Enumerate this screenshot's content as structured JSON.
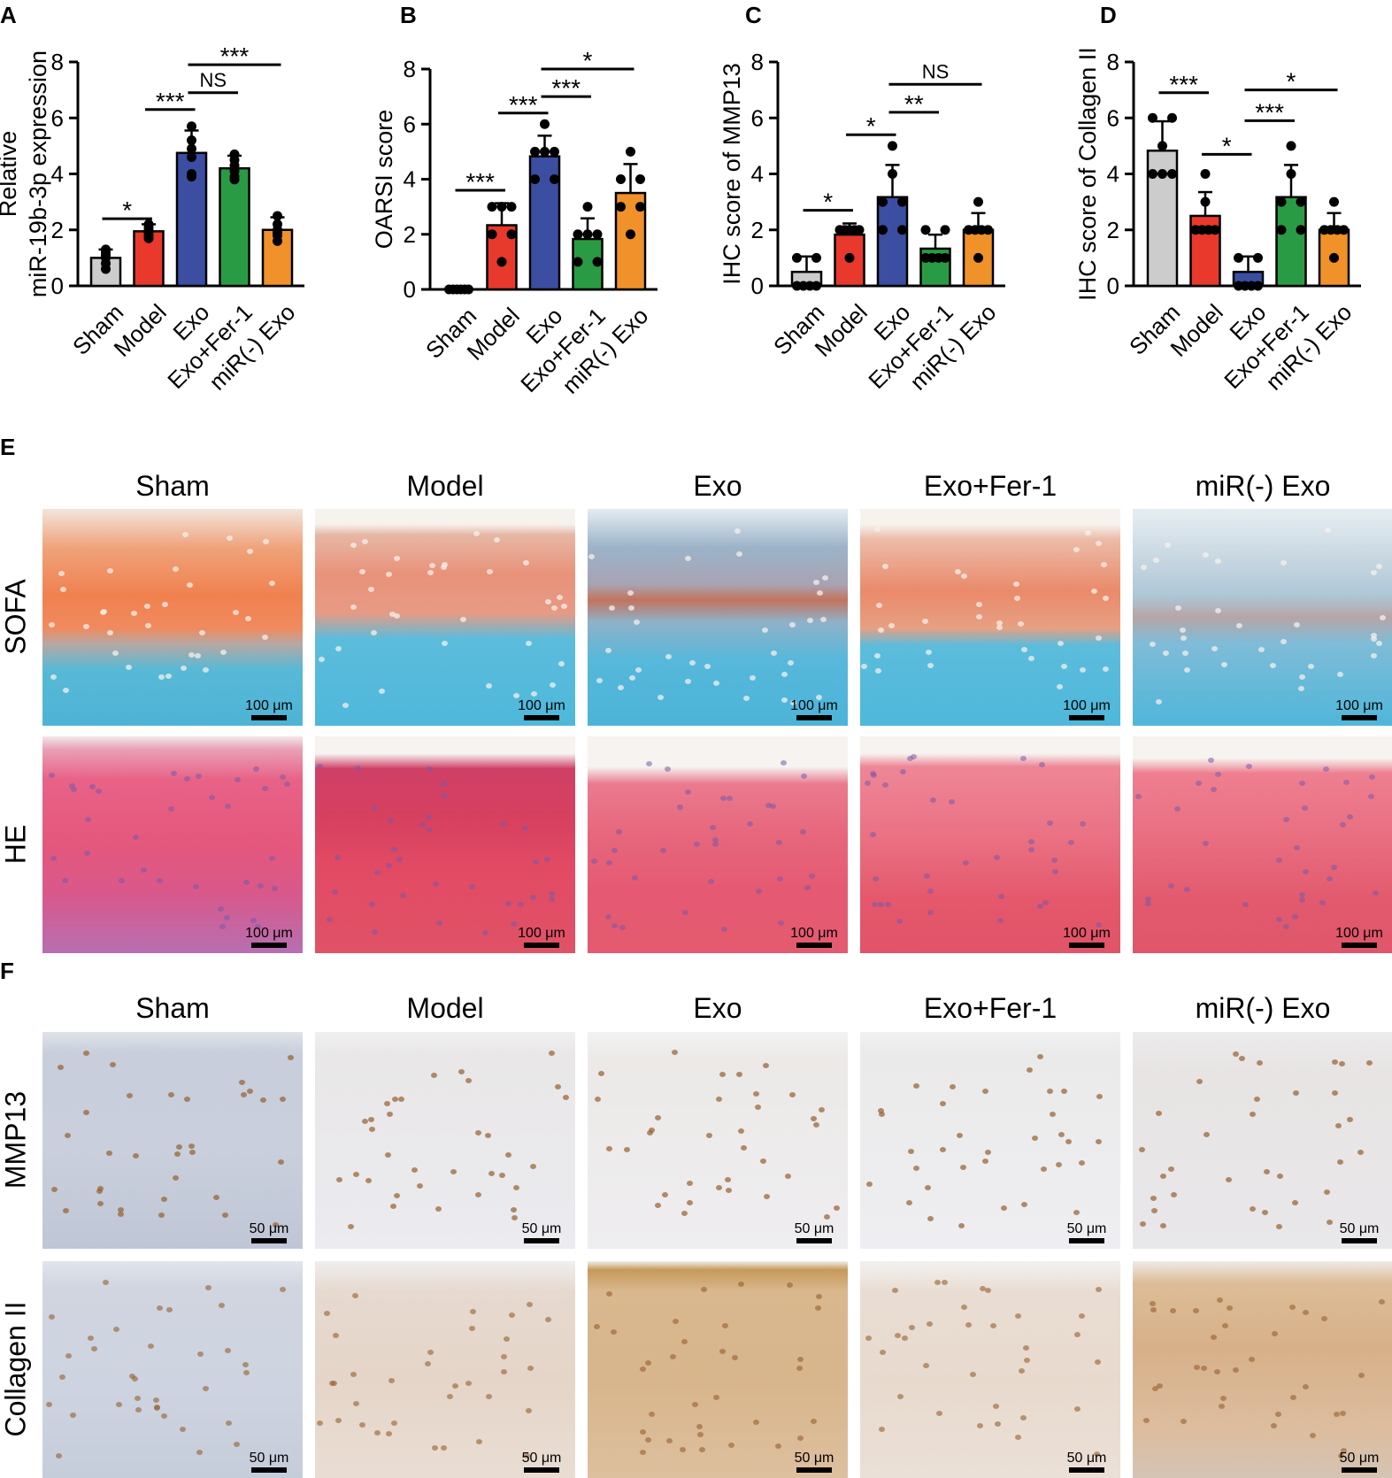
{
  "panels": {
    "A": "A",
    "B": "B",
    "C": "C",
    "D": "D",
    "E": "E",
    "F": "F"
  },
  "colors": {
    "Sham": "#cccccc",
    "Model": "#e8392c",
    "Exo": "#3b4ea2",
    "Exo+Fer-1": "#2a9b45",
    "miR(-) Exo": "#f0912a"
  },
  "chart_data": [
    {
      "panel": "A",
      "type": "bar",
      "categories": [
        "Sham",
        "Model",
        "Exo",
        "Exo+Fer-1",
        "miR(-) Exo"
      ],
      "ylabel_lines": [
        "Relative",
        "miR-19b-3p expression"
      ],
      "ylim": [
        0,
        8
      ],
      "yticks": [
        "0",
        "2",
        "4",
        "6",
        "8"
      ],
      "values": [
        1.0,
        1.95,
        4.75,
        4.2,
        2.0
      ],
      "sd": [
        0.3,
        0.25,
        0.8,
        0.45,
        0.45
      ],
      "points": [
        [
          0.6,
          0.8,
          1.0,
          1.1,
          1.2,
          1.3
        ],
        [
          1.7,
          1.8,
          1.9,
          2.0,
          2.1,
          2.2
        ],
        [
          3.9,
          4.0,
          4.6,
          4.9,
          5.2,
          5.7
        ],
        [
          3.8,
          3.9,
          4.1,
          4.3,
          4.5,
          4.7
        ],
        [
          1.6,
          1.8,
          1.9,
          2.0,
          2.2,
          2.5
        ]
      ],
      "significance": [
        {
          "from": 0,
          "to": 1,
          "y": 2.4,
          "label": "*"
        },
        {
          "from": 1,
          "to": 2,
          "y": 6.3,
          "label": "***"
        },
        {
          "from": 2,
          "to": 3,
          "y": 6.9,
          "label": "NS"
        },
        {
          "from": 2,
          "to": 4,
          "y": 7.9,
          "label": "***"
        }
      ]
    },
    {
      "panel": "B",
      "type": "bar",
      "categories": [
        "Sham",
        "Model",
        "Exo",
        "Exo+Fer-1",
        "miR(-) Exo"
      ],
      "ylabel_lines": [
        "OARSI score"
      ],
      "ylim": [
        0,
        8
      ],
      "yticks": [
        "0",
        "2",
        "4",
        "6",
        "8"
      ],
      "values": [
        0.0,
        2.33,
        4.83,
        1.83,
        3.5
      ],
      "sd": [
        0.0,
        0.8,
        0.75,
        0.75,
        1.05
      ],
      "points": [
        [
          0,
          0,
          0,
          0,
          0,
          0
        ],
        [
          1,
          2,
          2,
          3,
          3,
          3
        ],
        [
          4,
          4,
          5,
          5,
          5,
          6
        ],
        [
          1,
          1,
          2,
          2,
          2,
          3
        ],
        [
          2,
          3,
          3,
          4,
          4,
          5
        ]
      ],
      "significance": [
        {
          "from": 0,
          "to": 1,
          "y": 3.6,
          "label": "***"
        },
        {
          "from": 1,
          "to": 2,
          "y": 6.4,
          "label": "***"
        },
        {
          "from": 2,
          "to": 3,
          "y": 7.0,
          "label": "***"
        },
        {
          "from": 2,
          "to": 4,
          "y": 8.0,
          "label": "*"
        }
      ]
    },
    {
      "panel": "C",
      "type": "bar",
      "categories": [
        "Sham",
        "Model",
        "Exo",
        "Exo+Fer-1",
        "miR(-) Exo"
      ],
      "ylabel_lines": [
        "IHC score of MMP13"
      ],
      "ylim": [
        0,
        8
      ],
      "yticks": [
        "0",
        "2",
        "4",
        "6",
        "8"
      ],
      "values": [
        0.5,
        1.83,
        3.17,
        1.33,
        2.0
      ],
      "sd": [
        0.55,
        0.4,
        1.15,
        0.5,
        0.6
      ],
      "points": [
        [
          0,
          0,
          0,
          0,
          1,
          1
        ],
        [
          1,
          2,
          2,
          2,
          2,
          2
        ],
        [
          2,
          2,
          3,
          3,
          4,
          5
        ],
        [
          1,
          1,
          1,
          1,
          2,
          2
        ],
        [
          1,
          2,
          2,
          2,
          2,
          3
        ]
      ],
      "significance": [
        {
          "from": 0,
          "to": 1,
          "y": 2.7,
          "label": "*"
        },
        {
          "from": 1,
          "to": 2,
          "y": 5.4,
          "label": "*"
        },
        {
          "from": 2,
          "to": 3,
          "y": 6.2,
          "label": "**"
        },
        {
          "from": 2,
          "to": 4,
          "y": 7.2,
          "label": "NS"
        }
      ]
    },
    {
      "panel": "D",
      "type": "bar",
      "categories": [
        "Sham",
        "Model",
        "Exo",
        "Exo+Fer-1",
        "miR(-) Exo"
      ],
      "ylabel_lines": [
        "IHC score of Collagen II"
      ],
      "ylim": [
        0,
        8
      ],
      "yticks": [
        "0",
        "2",
        "4",
        "6",
        "8"
      ],
      "values": [
        4.83,
        2.5,
        0.5,
        3.17,
        2.0
      ],
      "sd": [
        1.05,
        0.85,
        0.55,
        1.15,
        0.6
      ],
      "points": [
        [
          4,
          4,
          4,
          5,
          6,
          6
        ],
        [
          2,
          2,
          2,
          2,
          3,
          4
        ],
        [
          0,
          0,
          0,
          0,
          1,
          1
        ],
        [
          2,
          2,
          3,
          3,
          4,
          5
        ],
        [
          1,
          2,
          2,
          2,
          2,
          3
        ]
      ],
      "significance": [
        {
          "from": 0,
          "to": 1,
          "y": 6.9,
          "label": "***"
        },
        {
          "from": 1,
          "to": 2,
          "y": 4.7,
          "label": "*"
        },
        {
          "from": 2,
          "to": 3,
          "y": 5.9,
          "label": "***"
        },
        {
          "from": 2,
          "to": 4,
          "y": 7.0,
          "label": "*"
        }
      ]
    }
  ],
  "histology": {
    "groups": [
      "Sham",
      "Model",
      "Exo",
      "Exo+Fer-1",
      "miR(-) Exo"
    ],
    "E_rows": [
      "SOFA",
      "HE"
    ],
    "F_rows": [
      "MMP13",
      "Collagen II"
    ],
    "E_scale": "100 μm",
    "F_scale": "50 μm"
  }
}
